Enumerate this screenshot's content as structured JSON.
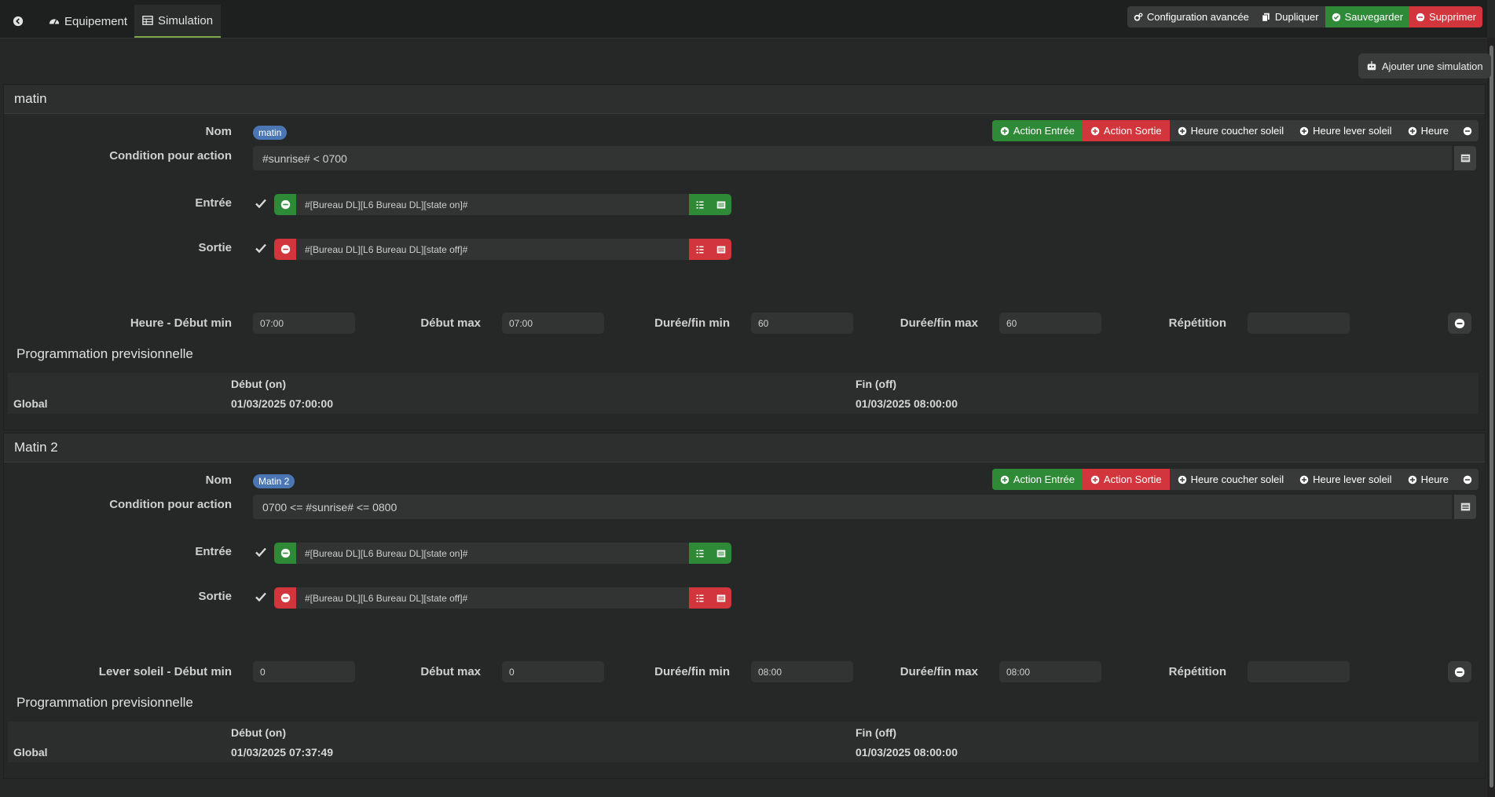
{
  "tabs": [
    {
      "label": "Equipement"
    },
    {
      "label": "Simulation"
    }
  ],
  "toolbar": {
    "config": "Configuration avancée",
    "duplicate": "Dupliquer",
    "save": "Sauvegarder",
    "delete": "Supprimer"
  },
  "add_simulation": "Ajouter une simulation",
  "labels": {
    "nom": "Nom",
    "condition": "Condition pour action",
    "entree": "Entrée",
    "sortie": "Sortie",
    "debut_max": "Début max",
    "duree_min": "Durée/fin min",
    "duree_max": "Durée/fin max",
    "repetition": "Répétition",
    "prog": "Programmation previsionnelle",
    "col_debut": "Début (on)",
    "col_fin": "Fin (off)",
    "global": "Global"
  },
  "action_buttons": {
    "entree": "Action Entrée",
    "sortie": "Action Sortie",
    "coucher": "Heure coucher soleil",
    "lever": "Heure lever soleil",
    "heure": "Heure"
  },
  "simulations": [
    {
      "title": "matin",
      "name": "matin",
      "condition": "#sunrise# < 0700",
      "entree_cmd": "#[Bureau DL][L6 Bureau DL][state on]#",
      "sortie_cmd": "#[Bureau DL][L6 Bureau DL][state off]#",
      "start_label": "Heure - Début min",
      "debut_min": "07:00",
      "debut_max": "07:00",
      "duree_min": "60",
      "duree_max": "60",
      "repetition": "",
      "prog_debut": "01/03/2025 07:00:00",
      "prog_fin": "01/03/2025 08:00:00"
    },
    {
      "title": "Matin 2",
      "name": "Matin 2",
      "condition": "0700 <= #sunrise# <= 0800",
      "entree_cmd": "#[Bureau DL][L6 Bureau DL][state on]#",
      "sortie_cmd": "#[Bureau DL][L6 Bureau DL][state off]#",
      "start_label": "Lever soleil - Début min",
      "debut_min": "0",
      "debut_max": "0",
      "duree_min": "08:00",
      "duree_max": "08:00",
      "repetition": "",
      "prog_debut": "01/03/2025 07:37:49",
      "prog_fin": "01/03/2025 08:00:00"
    }
  ],
  "colors": {
    "green": "#2f8a38",
    "red": "#d2353b",
    "pill": "#4a77b4"
  }
}
